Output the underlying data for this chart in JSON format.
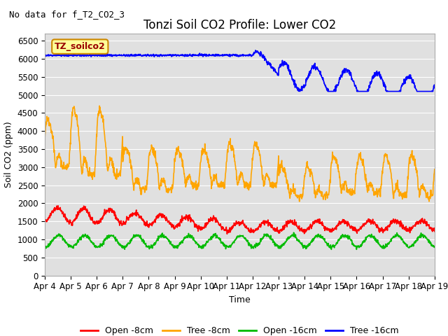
{
  "title": "Tonzi Soil CO2 Profile: Lower CO2",
  "subtitle": "No data for f_T2_CO2_3",
  "ylabel": "Soil CO2 (ppm)",
  "xlabel": "Time",
  "legend_label": "TZ_soilco2",
  "ylim": [
    0,
    6700
  ],
  "yticks": [
    0,
    500,
    1000,
    1500,
    2000,
    2500,
    3000,
    3500,
    4000,
    4500,
    5000,
    5500,
    6000,
    6500
  ],
  "x_labels": [
    "Apr 4",
    "Apr 5",
    "Apr 6",
    "Apr 7",
    "Apr 8",
    "Apr 9",
    "Apr 10",
    "Apr 11",
    "Apr 12",
    "Apr 13",
    "Apr 14",
    "Apr 15",
    "Apr 16",
    "Apr 17",
    "Apr 18",
    "Apr 19"
  ],
  "colors": {
    "open_8cm": "#ff0000",
    "tree_8cm": "#ffa500",
    "open_16cm": "#00bb00",
    "tree_16cm": "#0000ff",
    "bg_plot": "#e0e0e0",
    "bg_fig": "#ffffff",
    "legend_box_bg": "#ffff99",
    "legend_box_border": "#cc8800",
    "grid": "#ffffff"
  },
  "legend_entries": [
    {
      "label": "Open -8cm",
      "color": "#ff0000"
    },
    {
      "label": "Tree -8cm",
      "color": "#ffa500"
    },
    {
      "label": "Open -16cm",
      "color": "#00bb00"
    },
    {
      "label": "Tree -16cm",
      "color": "#0000ff"
    }
  ],
  "title_fontsize": 12,
  "subtitle_fontsize": 9,
  "axis_fontsize": 9,
  "tick_fontsize": 8.5,
  "legend_label_fontsize": 9,
  "linewidth": 1.2
}
